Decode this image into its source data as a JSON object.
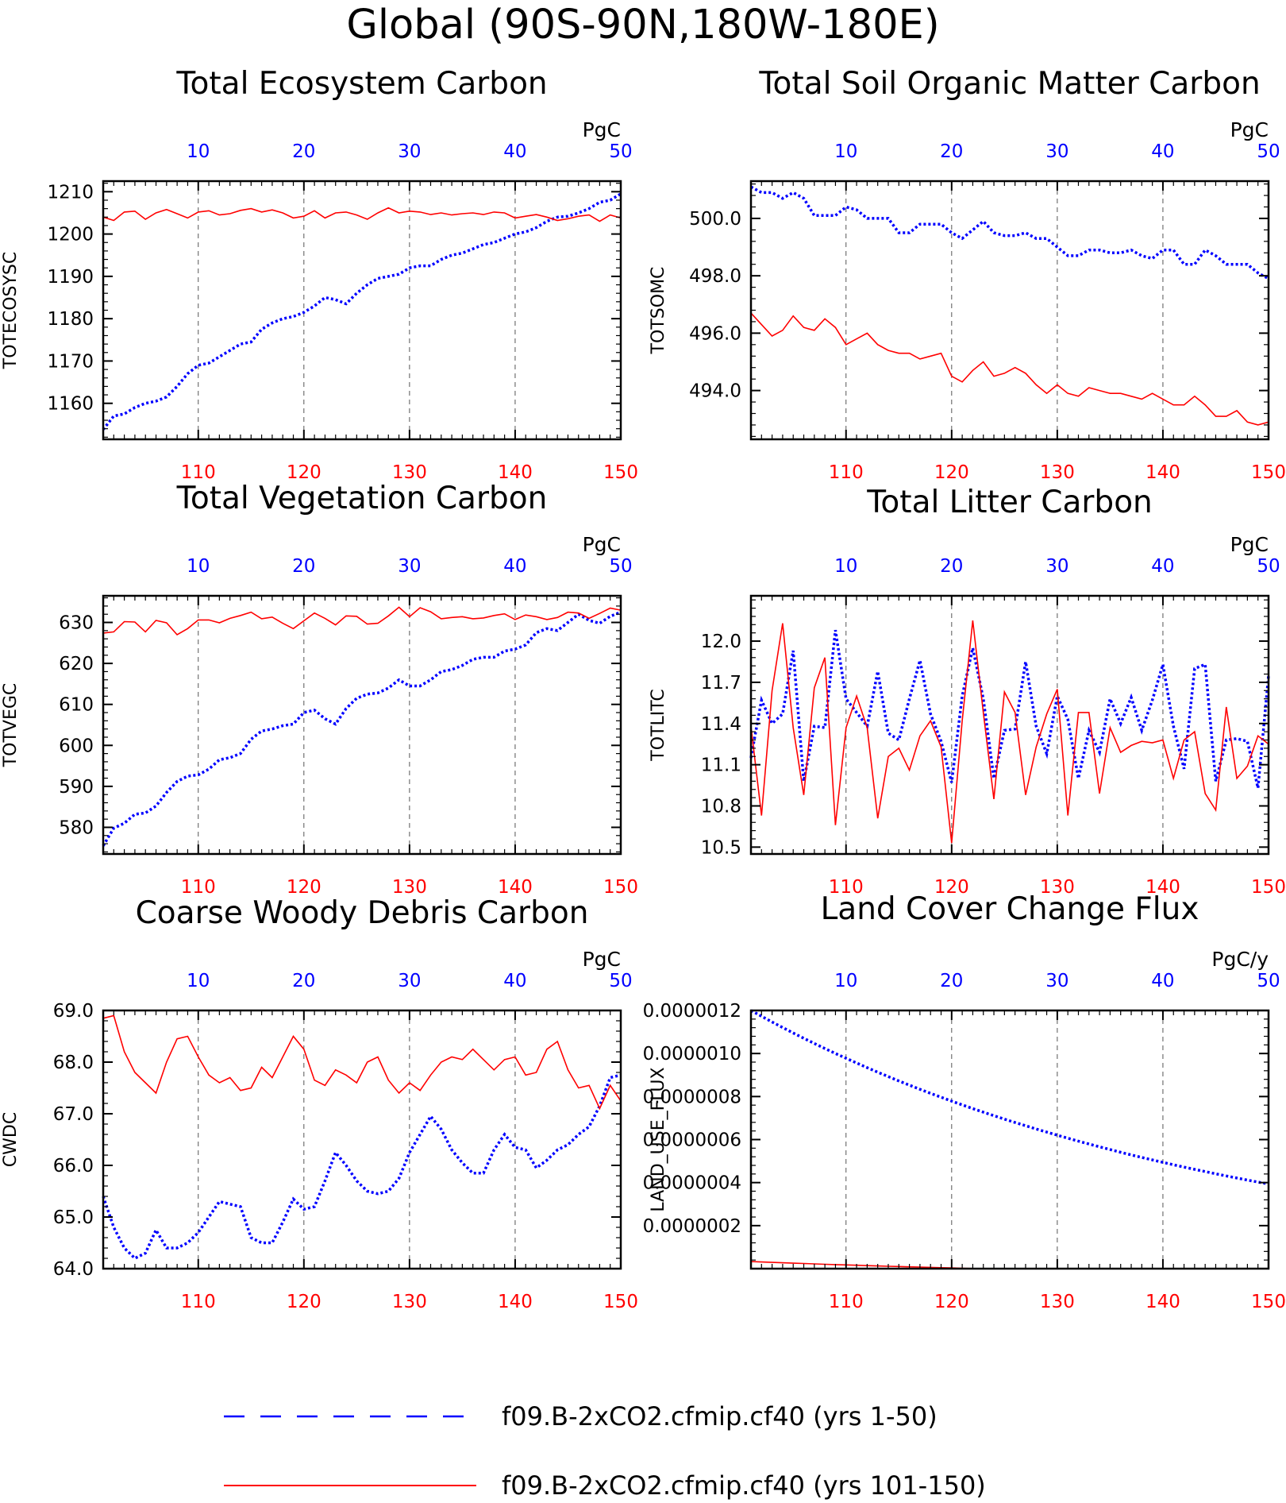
{
  "main_title": "Global (90S-90N,180W-180E)",
  "colors": {
    "top_axis": "#0000ff",
    "bottom_axis": "#ff0000",
    "frame": "#000000"
  },
  "legend": {
    "items": [
      {
        "label": "f09.B-2xCO2.cfmip.cf40 (yrs 1-50)",
        "color": "#0000ff",
        "style": "dashed"
      },
      {
        "label": "f09.B-2xCO2.cfmip.cf40 (yrs 101-150)",
        "color": "#ff0000",
        "style": "solid"
      }
    ]
  },
  "chart_data": [
    {
      "type": "line",
      "title": "Total Ecosystem Carbon",
      "ylabel": "TOTECOSYSC",
      "unit": "PgC",
      "xlim_top": [
        1,
        50
      ],
      "xticks_top": [
        10,
        20,
        30,
        40,
        50
      ],
      "xlim_bottom": [
        101,
        150
      ],
      "xticks_bottom": [
        110,
        120,
        130,
        140,
        150
      ],
      "ylim": [
        1151.5,
        1212.5
      ],
      "yticks": [
        1160,
        1170,
        1180,
        1190,
        1200,
        1210
      ],
      "ytick_decimals": 0,
      "series": [
        {
          "name": "f09.B-2xCO2.cfmip.cf40 (yrs 1-50)",
          "axis": "top",
          "color": "#0000ff",
          "style": "dotted",
          "values": [
            1153.8,
            1157,
            1157.5,
            1159,
            1160,
            1160.5,
            1161.5,
            1164,
            1167,
            1169,
            1169.5,
            1171,
            1172.5,
            1174,
            1174.5,
            1177.5,
            1179,
            1180,
            1180.5,
            1181.5,
            1183,
            1185,
            1184.5,
            1183.5,
            1186,
            1188,
            1189.5,
            1190,
            1190.5,
            1192,
            1192.5,
            1192.5,
            1194,
            1195,
            1195.5,
            1196.5,
            1197.5,
            1198,
            1199,
            1200,
            1200.5,
            1201.5,
            1203,
            1204,
            1204.2,
            1205,
            1206,
            1207.5,
            1208,
            1209.5
          ]
        },
        {
          "name": "f09.B-2xCO2.cfmip.cf40 (yrs 101-150)",
          "axis": "bottom",
          "color": "#ff0000",
          "style": "solid",
          "values": [
            1204,
            1203.2,
            1205.2,
            1205.4,
            1203.5,
            1205,
            1205.8,
            1204.8,
            1203.8,
            1205.2,
            1205.5,
            1204.5,
            1204.8,
            1205.6,
            1206,
            1205.2,
            1205.7,
            1205,
            1203.8,
            1204.2,
            1205.5,
            1203.8,
            1205,
            1205.2,
            1204.5,
            1203.5,
            1205,
            1206.2,
            1205,
            1205.4,
            1205.2,
            1204.6,
            1205,
            1204.5,
            1204.8,
            1205,
            1204.6,
            1205.2,
            1205,
            1203.8,
            1204.2,
            1204.6,
            1204,
            1203.2,
            1203.6,
            1204.2,
            1204.5,
            1203,
            1204.5,
            1203.8
          ]
        }
      ]
    },
    {
      "type": "line",
      "title": "Total Soil Organic Matter Carbon",
      "ylabel": "TOTSOMC",
      "unit": "PgC",
      "xlim_top": [
        1,
        50
      ],
      "xticks_top": [
        10,
        20,
        30,
        40,
        50
      ],
      "xlim_bottom": [
        101,
        150
      ],
      "xticks_bottom": [
        110,
        120,
        130,
        140,
        150
      ],
      "ylim": [
        492.3,
        501.3
      ],
      "yticks": [
        494.0,
        496.0,
        498.0,
        500.0
      ],
      "ytick_decimals": 1,
      "series": [
        {
          "name": "f09.B-2xCO2.cfmip.cf40 (yrs 1-50)",
          "axis": "top",
          "color": "#0000ff",
          "style": "dotted",
          "values": [
            501.1,
            500.9,
            500.9,
            500.7,
            500.9,
            500.7,
            500.1,
            500.1,
            500.1,
            500.4,
            500.3,
            500,
            500,
            500,
            499.5,
            499.5,
            499.8,
            499.8,
            499.8,
            499.5,
            499.3,
            499.6,
            499.9,
            499.5,
            499.4,
            499.4,
            499.5,
            499.3,
            499.3,
            499,
            498.7,
            498.7,
            498.9,
            498.9,
            498.8,
            498.8,
            498.9,
            498.7,
            498.6,
            498.9,
            498.9,
            498.4,
            498.4,
            498.9,
            498.7,
            498.4,
            498.4,
            498.4,
            498.1,
            497.9
          ]
        },
        {
          "name": "f09.B-2xCO2.cfmip.cf40 (yrs 101-150)",
          "axis": "bottom",
          "color": "#ff0000",
          "style": "solid",
          "values": [
            496.7,
            496.3,
            495.9,
            496.1,
            496.6,
            496.2,
            496.1,
            496.5,
            496.2,
            495.6,
            495.8,
            496,
            495.6,
            495.4,
            495.3,
            495.3,
            495.1,
            495.2,
            495.3,
            494.5,
            494.3,
            494.7,
            495,
            494.5,
            494.6,
            494.8,
            494.6,
            494.2,
            493.9,
            494.2,
            493.9,
            493.8,
            494.1,
            494,
            493.9,
            493.9,
            493.8,
            493.7,
            493.9,
            493.7,
            493.5,
            493.5,
            493.8,
            493.5,
            493.1,
            493.1,
            493.3,
            492.9,
            492.8,
            492.9
          ]
        }
      ]
    },
    {
      "type": "line",
      "title": "Total Vegetation Carbon",
      "ylabel": "TOTVEGC",
      "unit": "PgC",
      "xlim_top": [
        1,
        50
      ],
      "xticks_top": [
        10,
        20,
        30,
        40,
        50
      ],
      "xlim_bottom": [
        101,
        150
      ],
      "xticks_bottom": [
        110,
        120,
        130,
        140,
        150
      ],
      "ylim": [
        573.5,
        636.5
      ],
      "yticks": [
        580,
        590,
        600,
        610,
        620,
        630
      ],
      "ytick_decimals": 0,
      "series": [
        {
          "name": "f09.B-2xCO2.cfmip.cf40 (yrs 1-50)",
          "axis": "top",
          "color": "#0000ff",
          "style": "dotted",
          "values": [
            575.5,
            579.8,
            581,
            583.2,
            583.5,
            585.2,
            588.5,
            591.2,
            592.5,
            592.8,
            594.2,
            596.5,
            597,
            598,
            601.5,
            603.5,
            604,
            604.8,
            605.2,
            608,
            608.6,
            606.5,
            605.2,
            609,
            611.5,
            612.5,
            612.8,
            614,
            616,
            614.5,
            614.5,
            616,
            618,
            618.5,
            619.5,
            621,
            621.5,
            621.5,
            623,
            623.5,
            624.5,
            627.5,
            628.5,
            628,
            630,
            632,
            630.5,
            629.8,
            631.5,
            632.5
          ]
        },
        {
          "name": "f09.B-2xCO2.cfmip.cf40 (yrs 101-150)",
          "axis": "bottom",
          "color": "#ff0000",
          "style": "solid",
          "values": [
            627.4,
            627.7,
            630.2,
            630.1,
            627.7,
            630.5,
            629.9,
            627,
            628.5,
            630.6,
            630.6,
            629.9,
            631,
            631.7,
            632.5,
            630.9,
            631.3,
            629.8,
            628.5,
            630.4,
            632.3,
            631,
            629.4,
            631.6,
            631.5,
            629.6,
            629.8,
            631.6,
            633.7,
            631.4,
            633.6,
            632.6,
            630.9,
            631.2,
            631.4,
            630.9,
            631.1,
            631.7,
            632.1,
            630.7,
            631.8,
            631.4,
            630.7,
            631.2,
            632.5,
            632.3,
            631,
            632.2,
            633.5,
            633
          ]
        }
      ]
    },
    {
      "type": "line",
      "title": "Total Litter Carbon",
      "ylabel": "TOTLITC",
      "unit": "PgC",
      "xlim_top": [
        1,
        50
      ],
      "xticks_top": [
        10,
        20,
        30,
        40,
        50
      ],
      "xlim_bottom": [
        101,
        150
      ],
      "xticks_bottom": [
        110,
        120,
        130,
        140,
        150
      ],
      "ylim": [
        10.45,
        12.33
      ],
      "yticks": [
        10.5,
        10.8,
        11.1,
        11.4,
        11.7,
        12.0
      ],
      "ytick_decimals": 1,
      "series": [
        {
          "name": "f09.B-2xCO2.cfmip.cf40 (yrs 1-50)",
          "axis": "top",
          "color": "#0000ff",
          "style": "dotted",
          "values": [
            11.15,
            11.57,
            11.4,
            11.47,
            11.93,
            10.98,
            11.38,
            11.37,
            12.08,
            11.58,
            11.48,
            11.38,
            11.78,
            11.33,
            11.28,
            11.58,
            11.86,
            11.47,
            11.27,
            10.97,
            11.6,
            11.95,
            11.58,
            11,
            11.35,
            11.36,
            11.85,
            11.38,
            11.18,
            11.6,
            11.43,
            11,
            11.35,
            11.19,
            11.58,
            11.4,
            11.59,
            11.35,
            11.57,
            11.83,
            11.38,
            11.07,
            11.8,
            11.83,
            10.98,
            11.28,
            11.29,
            11.27,
            10.93,
            11.75
          ]
        },
        {
          "name": "f09.B-2xCO2.cfmip.cf40 (yrs 101-150)",
          "axis": "bottom",
          "color": "#ff0000",
          "style": "solid",
          "values": [
            11.38,
            10.73,
            11.64,
            12.13,
            11.37,
            10.88,
            11.66,
            11.88,
            10.66,
            11.37,
            11.6,
            11.37,
            10.71,
            11.16,
            11.22,
            11.06,
            11.31,
            11.42,
            11.23,
            10.53,
            11.42,
            12.15,
            11.48,
            10.85,
            11.63,
            11.48,
            10.88,
            11.23,
            11.47,
            11.65,
            10.73,
            11.48,
            11.48,
            10.89,
            11.37,
            11.19,
            11.24,
            11.27,
            11.26,
            11.28,
            11,
            11.28,
            11.34,
            10.89,
            10.77,
            11.52,
            11,
            11.09,
            11.31,
            11.25
          ]
        }
      ]
    },
    {
      "type": "line",
      "title": "Coarse Woody Debris Carbon",
      "ylabel": "CWDC",
      "unit": "PgC",
      "xlim_top": [
        1,
        50
      ],
      "xticks_top": [
        10,
        20,
        30,
        40,
        50
      ],
      "xlim_bottom": [
        101,
        150
      ],
      "xticks_bottom": [
        110,
        120,
        130,
        140,
        150
      ],
      "ylim": [
        64.0,
        69.0
      ],
      "yticks": [
        64.0,
        65.0,
        66.0,
        67.0,
        68.0,
        69.0
      ],
      "ytick_decimals": 1,
      "series": [
        {
          "name": "f09.B-2xCO2.cfmip.cf40 (yrs 1-50)",
          "axis": "top",
          "color": "#0000ff",
          "style": "dotted",
          "values": [
            65.4,
            64.8,
            64.4,
            64.2,
            64.3,
            64.75,
            64.4,
            64.4,
            64.5,
            64.7,
            65,
            65.3,
            65.25,
            65.2,
            64.6,
            64.5,
            64.5,
            64.9,
            65.35,
            65.15,
            65.2,
            65.7,
            66.25,
            66,
            65.7,
            65.5,
            65.45,
            65.5,
            65.75,
            66.25,
            66.6,
            66.95,
            66.7,
            66.3,
            66.05,
            65.85,
            65.85,
            66.3,
            66.6,
            66.35,
            66.3,
            65.95,
            66.1,
            66.3,
            66.4,
            66.6,
            66.75,
            67.15,
            67.7,
            67.75
          ]
        },
        {
          "name": "f09.B-2xCO2.cfmip.cf40 (yrs 101-150)",
          "axis": "bottom",
          "color": "#ff0000",
          "style": "solid",
          "values": [
            68.85,
            68.9,
            68.2,
            67.8,
            67.6,
            67.4,
            68,
            68.45,
            68.5,
            68.1,
            67.75,
            67.6,
            67.7,
            67.45,
            67.5,
            67.9,
            67.7,
            68.1,
            68.5,
            68.25,
            67.65,
            67.55,
            67.85,
            67.75,
            67.6,
            68,
            68.1,
            67.65,
            67.4,
            67.6,
            67.45,
            67.75,
            68,
            68.1,
            68.05,
            68.25,
            68.05,
            67.85,
            68.05,
            68.1,
            67.75,
            67.8,
            68.25,
            68.4,
            67.85,
            67.5,
            67.55,
            67.1,
            67.55,
            67.25
          ]
        }
      ]
    },
    {
      "type": "line",
      "title": "Land Cover Change Flux",
      "ylabel": "LAND_USE_FLUX",
      "unit": "PgC/y",
      "xlim_top": [
        1,
        50
      ],
      "xticks_top": [
        10,
        20,
        30,
        40,
        50
      ],
      "xlim_bottom": [
        101,
        150
      ],
      "xticks_bottom": [
        110,
        120,
        130,
        140,
        150
      ],
      "ylim": [
        0.0,
        1.2e-06
      ],
      "yticks": [
        2e-07,
        4e-07,
        6e-07,
        8e-07,
        1e-06,
        1.2e-06
      ],
      "ytick_decimals": 7,
      "series": [
        {
          "name": "f09.B-2xCO2.cfmip.cf40 (yrs 1-50)",
          "axis": "top",
          "color": "#0000ff",
          "style": "dotted",
          "formula": {
            "start": 1.2e-06,
            "ratio": 0.9775
          }
        },
        {
          "name": "f09.B-2xCO2.cfmip.cf40 (yrs 101-150)",
          "axis": "bottom",
          "color": "#ff0000",
          "style": "solid",
          "formula": {
            "start": 8.5e-08,
            "ratio": 0.9775,
            "offset": -5.2e-08
          }
        }
      ]
    }
  ]
}
